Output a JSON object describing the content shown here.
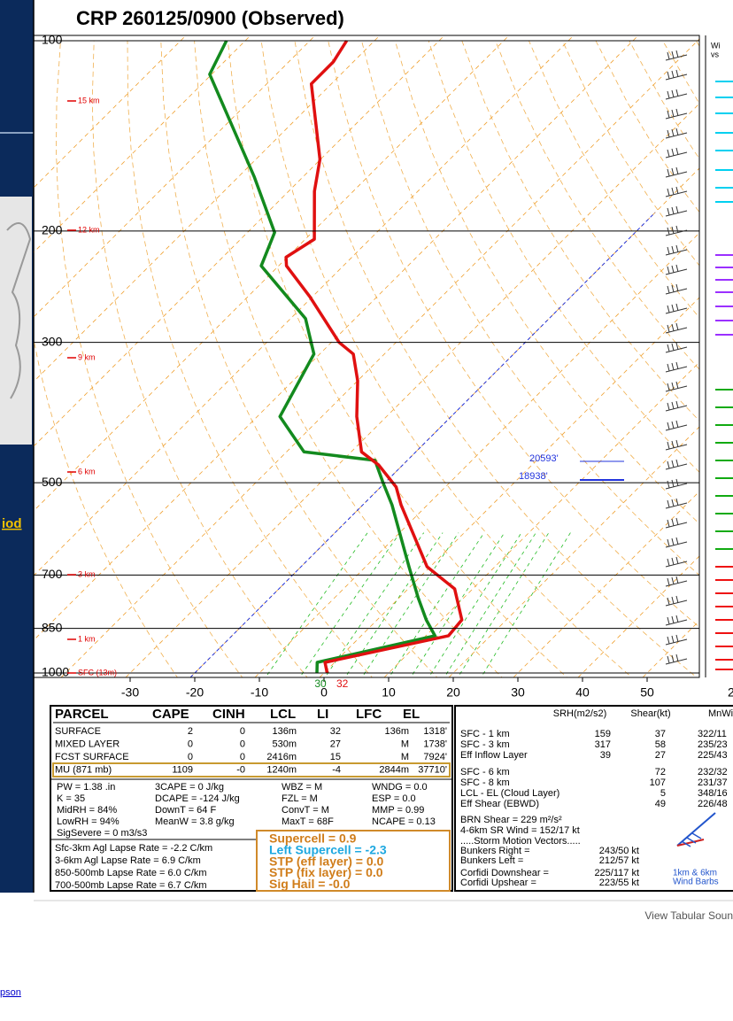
{
  "sidebar": {
    "link": "iod",
    "footer_link": "pson"
  },
  "sounding": {
    "title": "CRP  260125/0900 (Observed)",
    "pressure_ticks": [
      100,
      200,
      300,
      500,
      700,
      850,
      1000
    ],
    "height_labels": [
      "15 km",
      "12 km",
      "9 km",
      "6 km",
      "3 km",
      "1 km",
      "SFC (13m)"
    ],
    "temperature_ticks": [
      -30,
      -20,
      -10,
      0,
      10,
      20,
      30,
      40,
      50
    ],
    "temperature_tick_cut": "2",
    "temperature": {
      "pressure": [
        1000,
        962,
        873,
        824,
        736,
        679,
        542,
        508,
        469,
        447,
        393,
        345,
        313,
        300,
        254,
        227,
        220,
        206,
        173,
        154,
        117,
        108,
        100
      ],
      "values": [
        0.5,
        -1.5,
        13.5,
        13.1,
        7.2,
        -0.5,
        -14.1,
        -17.6,
        -23.7,
        -28.4,
        -34.6,
        -40,
        -44.8,
        -48.8,
        -60.4,
        -68.8,
        -70.2,
        -68.6,
        -76,
        -80.1,
        -93.1,
        -93.1,
        -94.3
      ]
    },
    "dewpoint": {
      "pressure": [
        1000,
        962,
        873,
        824,
        760,
        679,
        542,
        500,
        461,
        447,
        393,
        313,
        275,
        227,
        201,
        164,
        113,
        100
      ],
      "values": [
        -1.1,
        -2.7,
        11.4,
        7.6,
        2.9,
        -3.3,
        -15.5,
        -20.3,
        -25,
        -37.3,
        -46.5,
        -50.9,
        -57.7,
        -72.7,
        -75.8,
        -87.6,
        -110.3,
        -112.9
      ]
    },
    "surface_dewpoint": 30,
    "surface_temperature": 32,
    "height_markers": [
      "20593'",
      "18938'"
    ],
    "hodo_panel_text": [
      "Wi",
      "vs"
    ]
  },
  "parcel_table": {
    "headers": [
      "PARCEL",
      "CAPE",
      "CINH",
      "LCL",
      "LI",
      "LFC",
      "EL"
    ],
    "rows": [
      [
        "SURFACE",
        "2",
        "0",
        "136m",
        "32",
        "136m",
        "1318'"
      ],
      [
        "MIXED LAYER",
        "0",
        "0",
        "530m",
        "27",
        "M",
        "1738'"
      ],
      [
        "FCST SURFACE",
        "0",
        "0",
        "2416m",
        "15",
        "M",
        "7924'"
      ],
      [
        "MU  (871 mb)",
        "1109",
        "-0",
        "1240m",
        "-4",
        "2844m",
        "37710'"
      ]
    ]
  },
  "indices": [
    [
      "PW = 1.38 .in",
      "3CAPE = 0 J/kg",
      "WBZ = M",
      "WNDG = 0.0"
    ],
    [
      "K = 35",
      "DCAPE = -124 J/kg",
      "FZL = M",
      "ESP = 0.0"
    ],
    [
      "MidRH = 84%",
      "DownT = 64 F",
      "ConvT = M",
      "MMP = 0.99"
    ],
    [
      "LowRH = 94%",
      "MeanW = 3.8 g/kg",
      "MaxT = 68F",
      "NCAPE = 0.13"
    ],
    [
      "SigSevere = 0 m3/s3"
    ]
  ],
  "lapse_rates": [
    "Sfc-3km Agl Lapse Rate =  -2.2 C/km",
    "3-6km Agl Lapse Rate =    6.9 C/km",
    "850-500mb Lapse Rate =  6.0 C/km",
    "700-500mb Lapse Rate =  6.7 C/km"
  ],
  "composites": [
    "Supercell = 0.9",
    "Left Supercell = -2.3",
    "STP (eff layer) = 0.0",
    "STP (fix layer) = 0.0",
    "Sig Hail = -0.0"
  ],
  "kinematics": {
    "headers": [
      "SRH(m2/s2)",
      "Shear(kt)",
      "MnWind"
    ],
    "rows": [
      {
        "label": "SFC - 1 km",
        "srh": "159",
        "shear": "37",
        "wind": "322/11"
      },
      {
        "label": "SFC - 3 km",
        "srh": "317",
        "shear": "58",
        "wind": "235/23"
      },
      {
        "label": "Eff Inflow Layer",
        "srh": "39",
        "shear": "27",
        "wind": "225/43"
      },
      {
        "label": "SFC - 6 km",
        "shear": "72",
        "wind": "232/32"
      },
      {
        "label": "SFC - 8 km",
        "shear": "107",
        "wind": "231/37"
      },
      {
        "label": "LCL - EL (Cloud Layer)",
        "shear": "5",
        "wind": "348/16"
      },
      {
        "label": "Eff Shear (EBWD)",
        "shear": "49",
        "wind": "226/48"
      }
    ],
    "brn": [
      "BRN Shear = 229 m²/s²",
      "4-6km SR Wind =        152/17 kt"
    ],
    "storm_header": ".....Storm Motion Vectors.....",
    "storm_rows": [
      [
        "Bunkers Right =",
        "243/50 kt"
      ],
      [
        "Bunkers Left =",
        "212/57 kt"
      ],
      [
        "Corfidi Downshear =",
        "225/117 kt"
      ],
      [
        "Corfidi Upshear =",
        "223/55 kt"
      ]
    ],
    "barb_legend": [
      "1km & 6km",
      "Wind Barbs"
    ]
  },
  "footer": {
    "view_tabular": "View Tabular Soun"
  }
}
